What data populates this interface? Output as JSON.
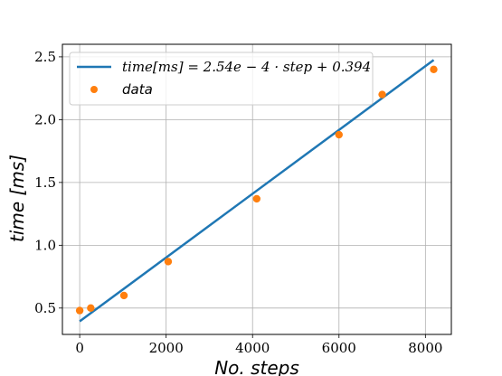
{
  "chart_data": {
    "type": "scatter",
    "xlabel": "No. steps",
    "ylabel": "time [ms]",
    "xlim": [
      -400,
      8600
    ],
    "ylim": [
      0.29,
      2.6
    ],
    "xticks": [
      0,
      2000,
      4000,
      6000,
      8000
    ],
    "yticks": [
      0.5,
      1.0,
      1.5,
      2.0,
      2.5
    ],
    "xtick_labels": [
      "0",
      "2000",
      "4000",
      "6000",
      "8000"
    ],
    "ytick_labels": [
      "0.5",
      "1.0",
      "1.5",
      "2.0",
      "2.5"
    ],
    "grid": true,
    "legend_position": "upper-left",
    "series": [
      {
        "name": "time[ms] = 2.54e − 4 · step + 0.394",
        "kind": "line",
        "color": "#1f77b4",
        "slope": 0.000254,
        "intercept": 0.394,
        "x_range": [
          0,
          8192
        ]
      },
      {
        "name": "data",
        "kind": "scatter",
        "color": "#ff7f0e",
        "x": [
          0,
          256,
          1024,
          2048,
          4096,
          6000,
          7000,
          8192
        ],
        "y": [
          0.48,
          0.5,
          0.6,
          0.87,
          1.37,
          1.88,
          2.2,
          2.4
        ]
      }
    ]
  }
}
